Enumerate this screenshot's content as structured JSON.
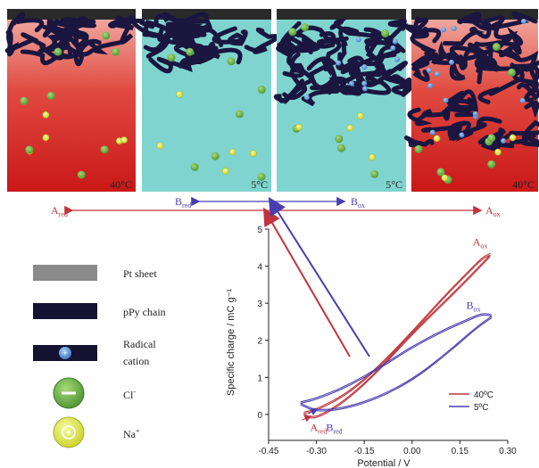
{
  "panels": [
    {
      "temp": "40°C",
      "state": "reduced",
      "bg": "red"
    },
    {
      "temp": "5°C",
      "state": "reduced",
      "bg": "cyan"
    },
    {
      "temp": "5°C",
      "state": "oxidized",
      "bg": "cyan"
    },
    {
      "temp": "40°C",
      "state": "oxidized",
      "bg": "red"
    }
  ],
  "arrows": {
    "b_red": {
      "base": "B",
      "sub": "red"
    },
    "b_ox": {
      "base": "B",
      "sub": "ox"
    },
    "a_red": {
      "base": "A",
      "sub": "red"
    },
    "a_ox": {
      "base": "A",
      "sub": "ox"
    }
  },
  "legend": [
    {
      "label": "Pt sheet",
      "icon": "pt-sheet-swatch"
    },
    {
      "label": "pPy chain",
      "icon": "ppy-chain-swatch"
    },
    {
      "label_line1": "Radical",
      "label_line2": "cation",
      "icon": "radical-cation-swatch"
    },
    {
      "label": "Cl",
      "sup": "-",
      "icon": "chloride-ion-icon"
    },
    {
      "label": "Na",
      "sup": "+",
      "icon": "sodium-ion-icon"
    }
  ],
  "colors": {
    "red_curve": "#c0353c",
    "blue_curve": "#4a3db0",
    "red_bg_top": "#f0a09a",
    "red_bg_bottom": "#d01f1f",
    "cyan_bg": "#7fd4d0",
    "chain": "#1a1640",
    "cation": "#5a8fd0",
    "chloride": "#58a83a",
    "sodium": "#e0e840"
  },
  "chart_data": {
    "type": "line",
    "xlabel": "Potential / V",
    "ylabel": "Specific charge / mC g⁻¹",
    "xlim": [
      -0.45,
      0.3
    ],
    "ylim": [
      -0.7,
      5.0
    ],
    "xticks": [
      "-0.45",
      "-0.30",
      "-0.15",
      "0.00",
      "0.15",
      "0.30"
    ],
    "yticks": [
      "0",
      "1",
      "2",
      "3",
      "4",
      "5"
    ],
    "legend_position": "bottom-right",
    "series": [
      {
        "name": "40ºC",
        "color": "#c0353c",
        "outer": [
          [
            -0.34,
            0.02
          ],
          [
            -0.3,
            0.1
          ],
          [
            -0.2,
            0.55
          ],
          [
            -0.1,
            1.3
          ],
          [
            0.0,
            2.2
          ],
          [
            0.1,
            3.15
          ],
          [
            0.18,
            3.85
          ],
          [
            0.22,
            4.2
          ],
          [
            0.245,
            4.3
          ]
        ],
        "inner": [
          [
            0.245,
            4.3
          ],
          [
            0.2,
            3.9
          ],
          [
            0.12,
            3.2
          ],
          [
            0.0,
            2.2
          ],
          [
            -0.1,
            1.25
          ],
          [
            -0.2,
            0.45
          ],
          [
            -0.28,
            0.0
          ],
          [
            -0.32,
            -0.08
          ],
          [
            -0.34,
            0.02
          ]
        ],
        "annotations": [
          {
            "base": "A",
            "sub": "ox",
            "x": 0.19,
            "y": 4.55
          },
          {
            "base": "A",
            "sub": "red",
            "x": -0.32,
            "y": -0.45
          }
        ]
      },
      {
        "name": "5ºC",
        "color": "#4a3db0",
        "outer": [
          [
            -0.35,
            0.3
          ],
          [
            -0.3,
            0.4
          ],
          [
            -0.2,
            0.75
          ],
          [
            -0.1,
            1.25
          ],
          [
            0.0,
            1.8
          ],
          [
            0.1,
            2.25
          ],
          [
            0.18,
            2.55
          ],
          [
            0.22,
            2.7
          ],
          [
            0.25,
            2.65
          ]
        ],
        "inner": [
          [
            0.25,
            2.65
          ],
          [
            0.2,
            2.35
          ],
          [
            0.1,
            1.6
          ],
          [
            0.0,
            0.95
          ],
          [
            -0.1,
            0.5
          ],
          [
            -0.2,
            0.2
          ],
          [
            -0.3,
            0.1
          ],
          [
            -0.35,
            0.3
          ]
        ],
        "annotations": [
          {
            "base": "B",
            "sub": "ox",
            "x": 0.17,
            "y": 2.85
          },
          {
            "base": "B",
            "sub": "red",
            "x": -0.27,
            "y": -0.45
          }
        ]
      }
    ]
  }
}
